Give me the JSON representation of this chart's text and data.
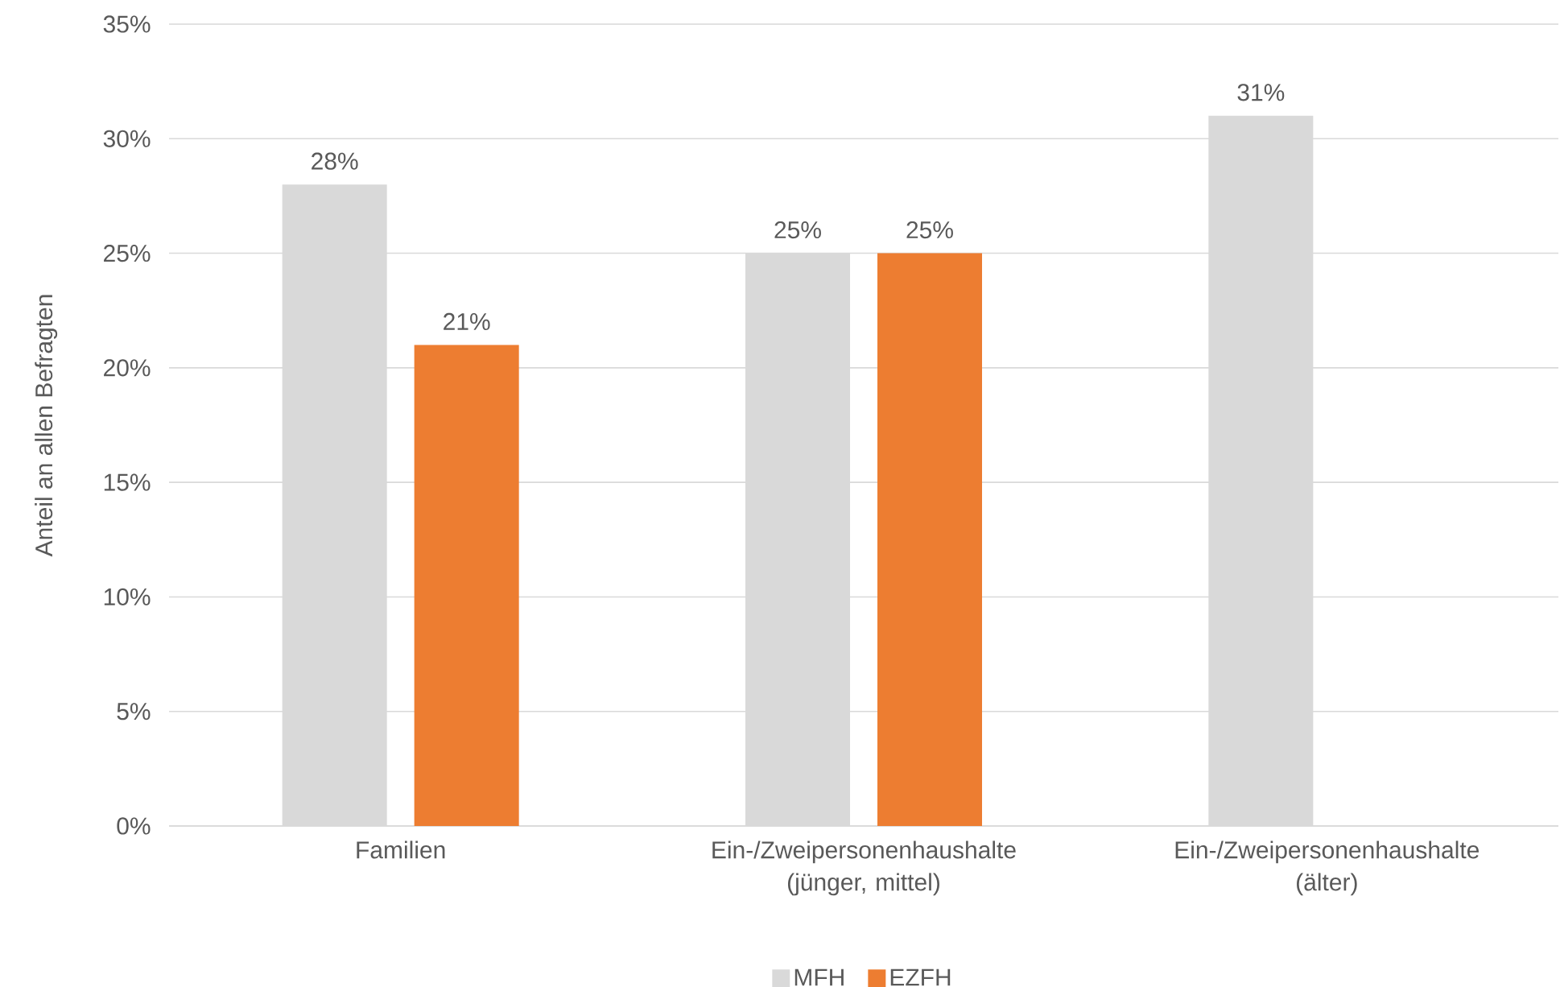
{
  "chart_data": {
    "type": "bar",
    "ylabel": "Anteil an allen Befragten",
    "categories": [
      "Familien",
      "Ein-/Zweipersonenhaushalte (jünger, mittel)",
      "Ein-/Zweipersonenhaushalte (älter)"
    ],
    "series": [
      {
        "name": "MFH",
        "color": "#d9d9d9",
        "values": [
          28,
          25,
          31
        ],
        "value_labels": [
          "28%",
          "25%",
          "31%"
        ]
      },
      {
        "name": "EZFH",
        "color": "#ed7d31",
        "values": [
          21,
          25,
          null
        ],
        "value_labels": [
          "21%",
          "25%",
          null
        ]
      }
    ],
    "ylim": [
      0,
      35
    ],
    "yticks": [
      {
        "value": 0,
        "label": "0%"
      },
      {
        "value": 5,
        "label": "5%"
      },
      {
        "value": 10,
        "label": "10%"
      },
      {
        "value": 15,
        "label": "15%"
      },
      {
        "value": 20,
        "label": "20%"
      },
      {
        "value": 25,
        "label": "25%"
      },
      {
        "value": 30,
        "label": "30%"
      },
      {
        "value": 35,
        "label": "35%"
      }
    ],
    "grid": "y",
    "legend": "bottom"
  }
}
